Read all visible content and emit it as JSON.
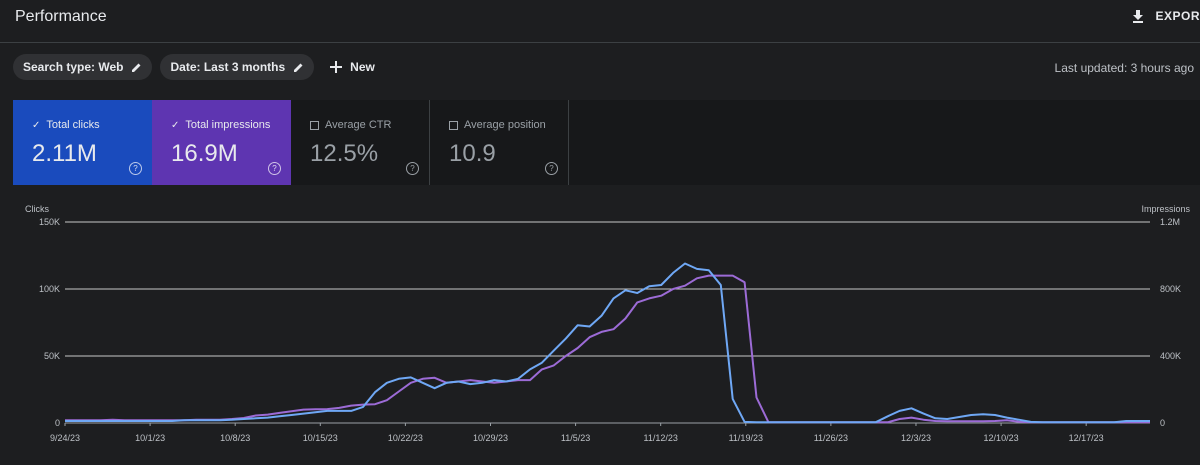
{
  "header": {
    "title": "Performance",
    "export_label": "EXPOR"
  },
  "filters": {
    "search_type": "Search type: Web",
    "date": "Date: Last 3 months",
    "new_label": "New"
  },
  "last_updated": "Last updated: 3 hours ago",
  "metrics": [
    {
      "label": "Total clicks",
      "value": "2.11M",
      "checked": true,
      "color": "#1a4bbd"
    },
    {
      "label": "Total impressions",
      "value": "16.9M",
      "checked": true,
      "color": "#5e35b1"
    },
    {
      "label": "Average CTR",
      "value": "12.5%",
      "checked": false
    },
    {
      "label": "Average position",
      "value": "10.9",
      "checked": false
    }
  ],
  "help_glyph": "?",
  "check_glyph": "✓",
  "chart_data": {
    "type": "line",
    "left_axis_label": "Clicks",
    "right_axis_label": "Impressions",
    "left_ticks": [
      "150K",
      "100K",
      "50K",
      "0"
    ],
    "right_ticks": [
      "1.2M",
      "800K",
      "400K",
      "0"
    ],
    "ylim_left": [
      0,
      150000
    ],
    "ylim_right": [
      0,
      1200000
    ],
    "x_tick_labels": [
      "9/24/23",
      "10/1/23",
      "10/8/23",
      "10/15/23",
      "10/22/23",
      "10/29/23",
      "11/5/23",
      "11/12/23",
      "11/19/23",
      "11/26/23",
      "12/3/23",
      "12/10/23",
      "12/17/23"
    ],
    "x_start": "9/24/23",
    "series": [
      {
        "axis": "left",
        "color": "#6fa8f5",
        "values": [
          1500,
          1500,
          1500,
          1500,
          1500,
          1500,
          1500,
          1500,
          1500,
          1500,
          2000,
          2000,
          2000,
          2000,
          2500,
          3000,
          3500,
          4000,
          5000,
          6000,
          7000,
          8000,
          9000,
          9000,
          9000,
          12000,
          23000,
          30000,
          33000,
          34000,
          30000,
          26000,
          30000,
          31000,
          29000,
          30000,
          32000,
          31000,
          33000,
          40000,
          45000,
          54000,
          63000,
          73000,
          72000,
          80000,
          93000,
          99000,
          97000,
          102000,
          103000,
          112000,
          119000,
          115000,
          114000,
          103000,
          18000,
          800,
          600,
          600,
          600,
          600,
          600,
          600,
          600,
          600,
          600,
          600,
          600,
          5000,
          9000,
          11000,
          7000,
          3500,
          3000,
          4500,
          6000,
          6500,
          6000,
          4000,
          2500,
          800,
          600,
          600,
          600,
          600,
          600,
          600,
          600,
          1500,
          1500,
          1500
        ]
      },
      {
        "axis": "right",
        "color": "#9c6bd6",
        "values": [
          16000,
          16000,
          16000,
          16000,
          20000,
          16000,
          16000,
          16000,
          16000,
          16000,
          16000,
          20000,
          20000,
          20000,
          24000,
          30000,
          45000,
          50000,
          60000,
          70000,
          80000,
          82000,
          83000,
          90000,
          104000,
          110000,
          112000,
          136000,
          188000,
          240000,
          264000,
          270000,
          240000,
          248000,
          256000,
          248000,
          240000,
          248000,
          256000,
          256000,
          320000,
          344000,
          400000,
          448000,
          512000,
          544000,
          560000,
          624000,
          720000,
          744000,
          760000,
          800000,
          820000,
          864000,
          880000,
          880000,
          880000,
          840000,
          152000,
          4000,
          4000,
          4000,
          4000,
          4000,
          4000,
          4000,
          4000,
          4000,
          4000,
          4000,
          24000,
          32000,
          20000,
          12000,
          10000,
          10000,
          10000,
          10000,
          12000,
          16000,
          8000,
          4000,
          4000,
          4000,
          4000,
          4000,
          4000,
          4000,
          4000,
          4000,
          4000,
          4000
        ]
      }
    ]
  }
}
